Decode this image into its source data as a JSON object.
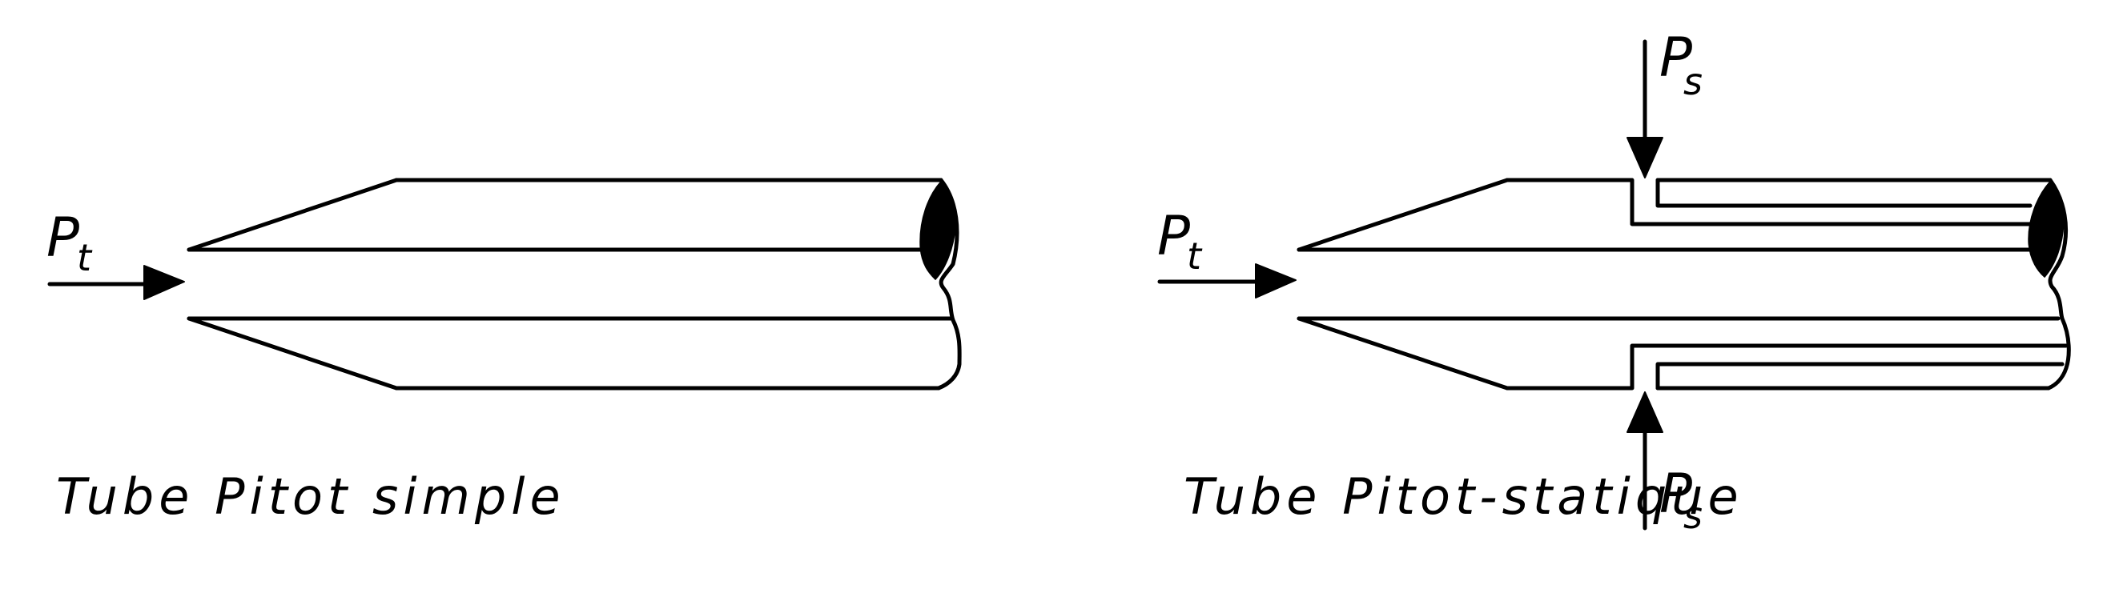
{
  "diagrams": [
    {
      "caption": "Tube Pitot simple",
      "inlet_label": "P",
      "inlet_subscript": "t"
    },
    {
      "caption": "Tube Pitot-statique",
      "inlet_label": "P",
      "inlet_subscript": "t",
      "static_label_top": "P",
      "static_subscript_top": "s",
      "static_label_bottom": "P",
      "static_subscript_bottom": "s"
    }
  ]
}
